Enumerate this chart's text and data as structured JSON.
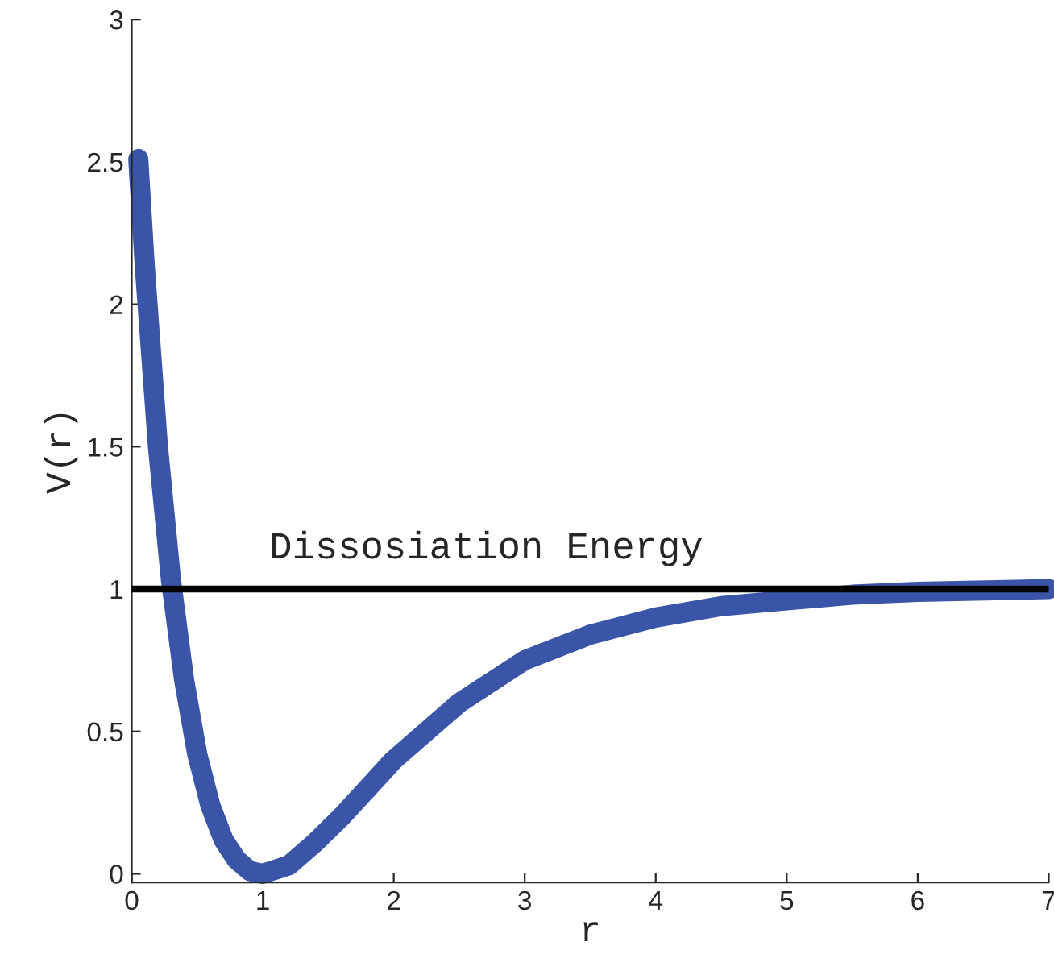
{
  "chart_data": {
    "type": "line",
    "xlabel": "r",
    "ylabel": "V(r)",
    "x": [
      0.05,
      0.1,
      0.2,
      0.3,
      0.4,
      0.5,
      0.6,
      0.7,
      0.8,
      0.9,
      1.0,
      1.2,
      1.4,
      1.6,
      1.8,
      2.0,
      2.5,
      3.0,
      3.5,
      4.0,
      4.5,
      5.0,
      5.5,
      6.0,
      7.0
    ],
    "series": [
      {
        "color": "#3a54a8",
        "values": [
          2.51,
          2.13,
          1.5,
          1.03,
          0.68,
          0.42,
          0.24,
          0.12,
          0.05,
          0.01,
          0.0,
          0.03,
          0.11,
          0.2,
          0.3,
          0.4,
          0.6,
          0.75,
          0.84,
          0.9,
          0.94,
          0.96,
          0.98,
          0.99,
          1.0
        ]
      }
    ],
    "xlim": [
      0,
      7
    ],
    "ylim": [
      -0.03,
      3
    ],
    "xticks": [
      0,
      1,
      2,
      3,
      4,
      5,
      6,
      7
    ],
    "yticks": [
      0,
      0.5,
      1,
      1.5,
      2,
      2.5,
      3
    ],
    "ref_lines": [
      {
        "axis": "y",
        "value": 1,
        "label": "Dissosiation Energy",
        "color": "#000000",
        "line_style": "solid"
      }
    ],
    "grid": false,
    "legend": false,
    "marker": "none",
    "line_style": "solid"
  }
}
